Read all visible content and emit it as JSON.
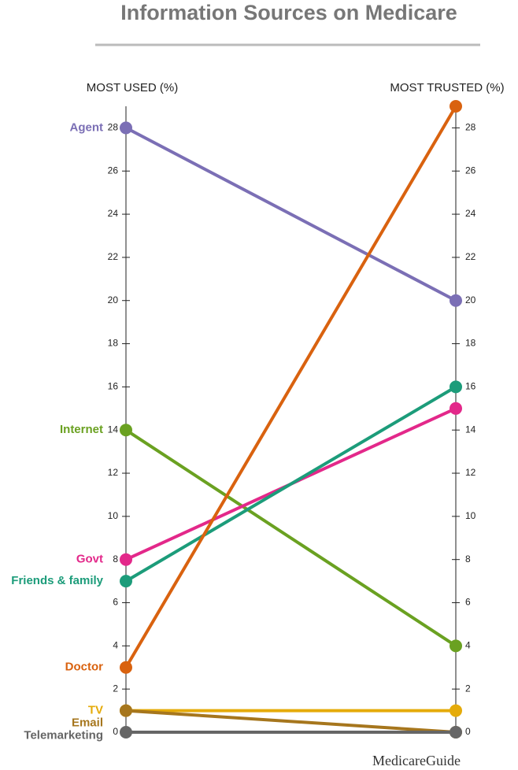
{
  "chart_data": {
    "type": "slope",
    "title": "Information Sources on Medicare",
    "x_labels": [
      "MOST USED (%)",
      "MOST TRUSTED (%)"
    ],
    "source": "MedicareGuide",
    "ylim": [
      0,
      29
    ],
    "yticks": [
      0,
      2,
      4,
      6,
      8,
      10,
      12,
      14,
      16,
      18,
      20,
      22,
      24,
      26,
      28
    ],
    "series": [
      {
        "name": "Agent",
        "color": "#7b6fb5",
        "values": [
          28,
          20
        ]
      },
      {
        "name": "Internet",
        "color": "#6aa121",
        "values": [
          14,
          4
        ]
      },
      {
        "name": "Govt",
        "color": "#e3288a",
        "values": [
          8,
          15
        ]
      },
      {
        "name": "Friends & family",
        "color": "#1c9c7a",
        "values": [
          7,
          16
        ]
      },
      {
        "name": "Doctor",
        "color": "#d9620f",
        "values": [
          3,
          29
        ]
      },
      {
        "name": "TV",
        "color": "#e5ab0a",
        "values": [
          1,
          1
        ]
      },
      {
        "name": "Email",
        "color": "#a6761d",
        "values": [
          1,
          0
        ]
      },
      {
        "name": "Telemarketing",
        "color": "#666666",
        "values": [
          0,
          0
        ]
      }
    ]
  }
}
